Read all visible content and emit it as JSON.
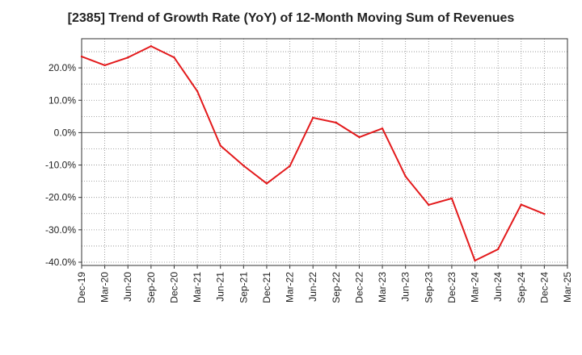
{
  "chart_data": {
    "type": "line",
    "title": "[2385]  Trend of Growth Rate (YoY) of 12-Month Moving Sum of Revenues",
    "xlabel": "",
    "ylabel": "",
    "categories": [
      "Dec-19",
      "Mar-20",
      "Jun-20",
      "Sep-20",
      "Dec-20",
      "Mar-21",
      "Jun-21",
      "Sep-21",
      "Dec-21",
      "Mar-22",
      "Jun-22",
      "Sep-22",
      "Dec-22",
      "Mar-23",
      "Jun-23",
      "Sep-23",
      "Dec-23",
      "Mar-24",
      "Jun-24",
      "Sep-24",
      "Dec-24",
      "Mar-25"
    ],
    "series": [
      {
        "color": "#e31a1c",
        "values": [
          23.5,
          20.8,
          23.2,
          26.7,
          23.2,
          12.8,
          -4.0,
          -10.2,
          -15.7,
          -10.3,
          4.6,
          3.1,
          -1.4,
          1.3,
          -13.5,
          -22.3,
          -20.3,
          -39.5,
          -36.0,
          -22.2,
          -25.1,
          null
        ]
      }
    ],
    "ylim": [
      -41,
      29
    ],
    "yticks": [
      20,
      10,
      0,
      -10,
      -20,
      -30,
      -40
    ],
    "ytick_labels": [
      "20.0%",
      "10.0%",
      "0.0%",
      "-10.0%",
      "-20.0%",
      "-30.0%",
      "-40.0%"
    ],
    "grid": true,
    "legend": "none"
  }
}
